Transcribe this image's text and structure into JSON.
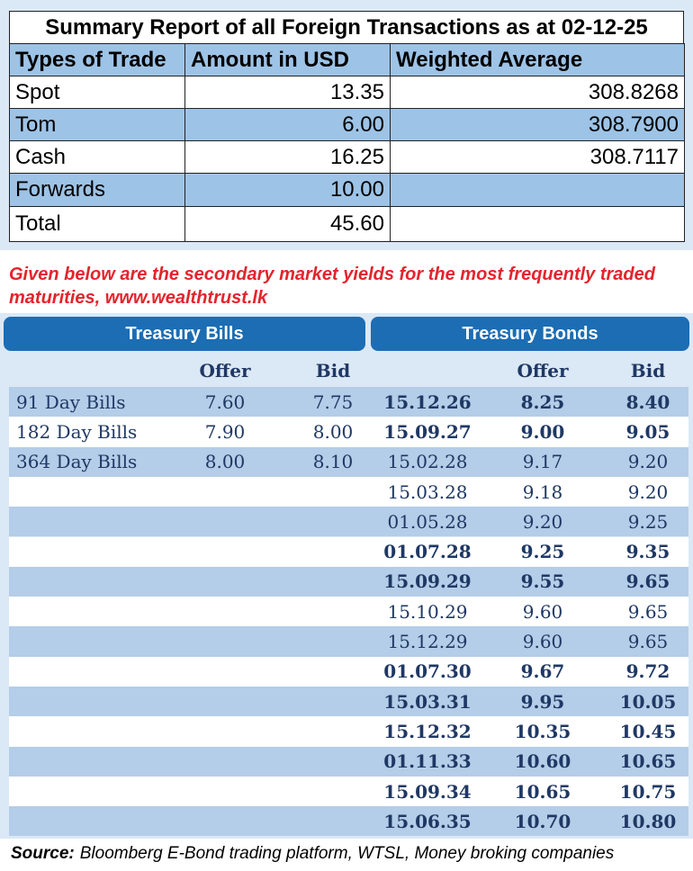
{
  "summary": {
    "title": "Summary Report of all Foreign Transactions as at 02-12-25",
    "header": [
      "Types of Trade",
      "Amount in USD",
      "Weighted Average"
    ],
    "rows": [
      [
        "Spot",
        "13.35",
        "308.8268"
      ],
      [
        "Tom",
        "6.00",
        "308.7900"
      ],
      [
        "Cash",
        "16.25",
        "308.7117"
      ],
      [
        "Forwards",
        "10.00"
      ],
      [
        "Total",
        "45.60"
      ]
    ]
  },
  "note": "Given below are the secondary market yields for the most frequently traded maturities, www.wealthtrust.lk",
  "bills": {
    "title": "Treasury Bills",
    "header": [
      "Offer",
      "Bid"
    ],
    "rows": [
      [
        "91 Day Bills",
        "7.60",
        "7.75"
      ],
      [
        "182 Day Bills",
        "7.90",
        "8.00"
      ],
      [
        "364 Day Bills",
        "8.00",
        "8.10"
      ]
    ]
  },
  "bonds": {
    "title": "Treasury Bonds",
    "header": [
      "Offer",
      "Bid"
    ],
    "rows": [
      [
        "15.12.26",
        "8.25",
        "8.40"
      ],
      [
        "15.09.27",
        "9.00",
        "9.05"
      ],
      [
        "15.02.28",
        "9.17",
        "9.20"
      ],
      [
        "15.03.28",
        "9.18",
        "9.20"
      ],
      [
        "01.05.28",
        "9.20",
        "9.25"
      ],
      [
        "01.07.28",
        "9.25",
        "9.35"
      ],
      [
        "15.09.29",
        "9.55",
        "9.65"
      ],
      [
        "15.10.29",
        "9.60",
        "9.65"
      ],
      [
        "15.12.29",
        "9.60",
        "9.65"
      ],
      [
        "01.07.30",
        "9.67",
        "9.72"
      ],
      [
        "15.03.31",
        "9.95",
        "10.05"
      ],
      [
        "15.12.32",
        "10.35",
        "10.45"
      ],
      [
        "01.11.33",
        "10.60",
        "10.65"
      ],
      [
        "15.09.34",
        "10.65",
        "10.75"
      ],
      [
        "15.06.35",
        "10.70",
        "10.80"
      ]
    ],
    "bold": [
      true,
      true,
      false,
      false,
      false,
      true,
      true,
      false,
      false,
      true,
      true,
      true,
      true,
      true,
      true
    ]
  },
  "source": {
    "label": "Source:",
    "text": "Bloomberg E-Bond trading platform, WTSL, Money broking companies"
  }
}
